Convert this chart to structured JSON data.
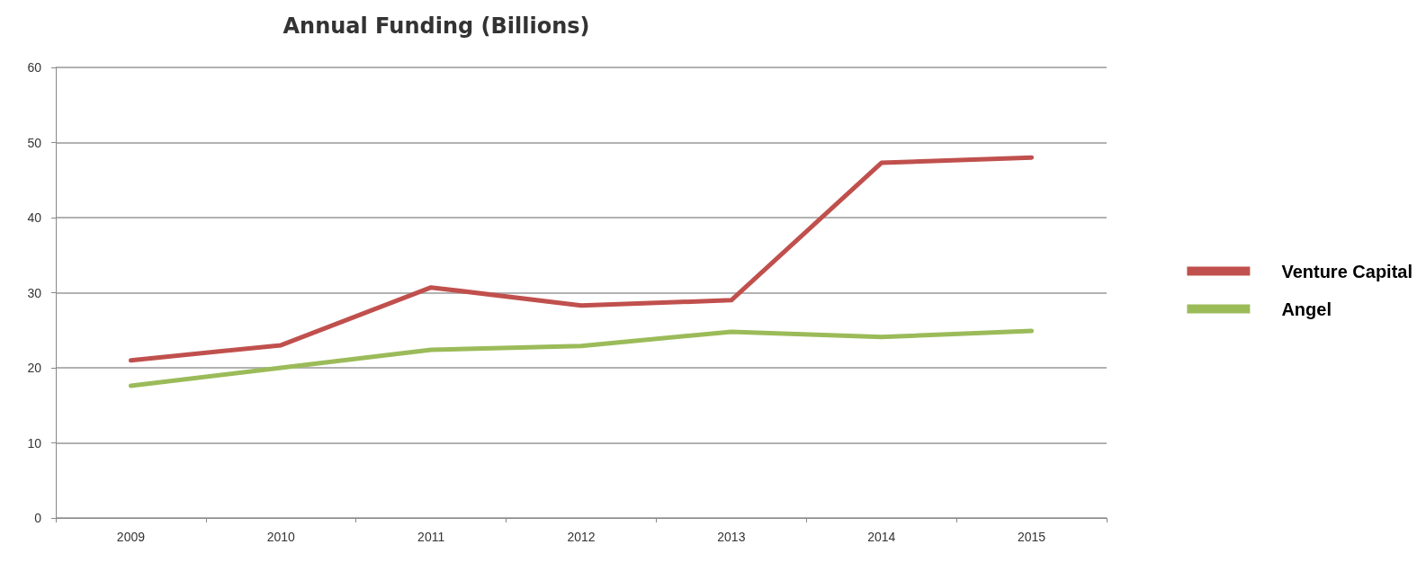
{
  "chart_data": {
    "type": "line",
    "title": "Annual Funding (Billions)",
    "categories": [
      "2009",
      "2010",
      "2011",
      "2012",
      "2013",
      "2014",
      "2015"
    ],
    "series": [
      {
        "name": "Venture Capital",
        "color": "#c0504d",
        "values": [
          21,
          23,
          30.7,
          28.3,
          29,
          47.3,
          48
        ]
      },
      {
        "name": "Angel",
        "color": "#9bbb59",
        "values": [
          17.6,
          20,
          22.4,
          22.9,
          24.8,
          24.1,
          24.9
        ]
      }
    ],
    "ylim": [
      0,
      60
    ],
    "yticks": [
      0,
      10,
      20,
      30,
      40,
      50,
      60
    ],
    "grid": "y",
    "legend": "right",
    "marker": "none",
    "line_style": "solid"
  }
}
